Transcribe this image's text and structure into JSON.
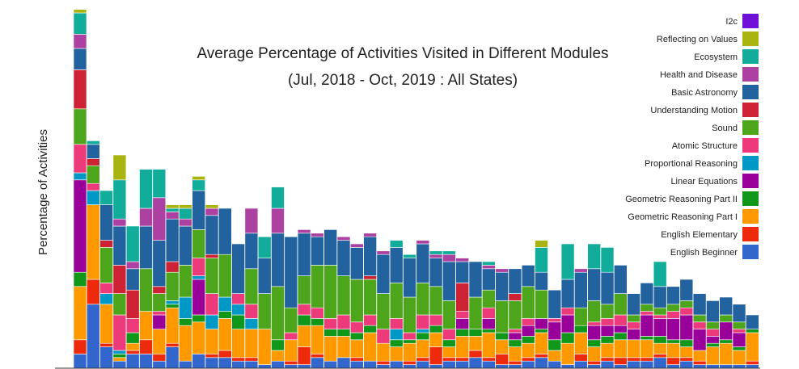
{
  "chart_data": {
    "type": "bar",
    "stacked": true,
    "title": "Average Percentage of Activities Visited in Different Modules",
    "subtitle": "(Jul, 2018 - Oct, 2019 : All States)",
    "xlabel": "",
    "ylabel": "Percentage of Activities",
    "ylim": [
      0,
      100
    ],
    "grid": false,
    "legend_position": "top-right",
    "series": [
      {
        "name": "English Beginner",
        "color": "#3366cc",
        "values": [
          4,
          18,
          6,
          2,
          4,
          4,
          2,
          6,
          2,
          4,
          3,
          3,
          2,
          2,
          1,
          2,
          1,
          1,
          3,
          2,
          3,
          2,
          2,
          1,
          2,
          1,
          2,
          1,
          2,
          2,
          3,
          2,
          1,
          1,
          2,
          3,
          2,
          1,
          2,
          1,
          2,
          1,
          2,
          2,
          3,
          1,
          2,
          1,
          1,
          1,
          1,
          1
        ]
      },
      {
        "name": "English Elementary",
        "color": "#ee2a0c",
        "values": [
          4,
          7,
          1,
          0,
          1,
          4,
          2,
          1,
          0,
          0,
          1,
          2,
          1,
          1,
          0,
          0,
          1,
          5,
          1,
          0,
          0,
          1,
          0,
          1,
          0,
          1,
          1,
          5,
          1,
          1,
          2,
          1,
          3,
          1,
          1,
          1,
          0,
          0,
          2,
          1,
          1,
          2,
          1,
          1,
          1,
          2,
          1,
          1,
          0,
          0,
          0,
          1
        ]
      },
      {
        "name": "Geometric Reasoning Part I",
        "color": "#ff9900",
        "values": [
          15,
          21,
          11,
          1,
          2,
          8,
          7,
          10,
          10,
          9,
          7,
          9,
          8,
          8,
          10,
          3,
          6,
          6,
          8,
          7,
          6,
          5,
          8,
          5,
          4,
          5,
          5,
          4,
          3,
          6,
          4,
          7,
          4,
          4,
          4,
          6,
          3,
          6,
          6,
          4,
          4,
          5,
          5,
          5,
          3,
          4,
          3,
          3,
          5,
          6,
          4,
          8
        ]
      },
      {
        "name": "Geometric Reasoning Part II",
        "color": "#109618",
        "values": [
          4,
          0,
          0,
          1,
          3,
          0,
          0,
          1,
          2,
          2,
          0,
          2,
          4,
          0,
          0,
          3,
          0,
          3,
          2,
          2,
          2,
          2,
          2,
          0,
          2,
          1,
          2,
          2,
          2,
          2,
          2,
          1,
          2,
          2,
          2,
          1,
          3,
          3,
          2,
          2,
          2,
          2,
          0,
          1,
          2,
          1,
          2,
          0,
          1,
          1,
          1,
          1
        ]
      },
      {
        "name": "Linear Equations",
        "color": "#990099",
        "values": [
          26,
          0,
          0,
          0,
          0,
          0,
          4,
          0,
          0,
          10,
          0,
          0,
          0,
          0,
          0,
          0,
          0,
          0,
          0,
          0,
          0,
          0,
          0,
          0,
          0,
          0,
          0,
          0,
          0,
          3,
          0,
          3,
          0,
          2,
          3,
          3,
          5,
          5,
          0,
          4,
          3,
          2,
          3,
          6,
          5,
          6,
          7,
          6,
          2,
          5,
          4,
          0
        ]
      },
      {
        "name": "Proportional Reasoning",
        "color": "#0099c6",
        "values": [
          2,
          4,
          3,
          1,
          0,
          0,
          0,
          1,
          6,
          1,
          4,
          4,
          3,
          3,
          0,
          0,
          0,
          0,
          0,
          0,
          0,
          0,
          0,
          0,
          3,
          0,
          1,
          0,
          0,
          0,
          0,
          0,
          0,
          0,
          0,
          0,
          0,
          0,
          0,
          0,
          0,
          0,
          0,
          0,
          0,
          0,
          0,
          0,
          0,
          0,
          0,
          0
        ]
      },
      {
        "name": "Atomic Structure",
        "color": "#ec3a7a",
        "values": [
          8,
          2,
          3,
          10,
          4,
          0,
          1,
          0,
          0,
          5,
          6,
          0,
          3,
          4,
          0,
          0,
          2,
          3,
          3,
          3,
          4,
          3,
          3,
          4,
          3,
          2,
          4,
          3,
          3,
          2,
          0,
          3,
          0,
          1,
          2,
          0,
          1,
          2,
          0,
          1,
          2,
          3,
          2,
          1,
          1,
          2,
          2,
          2,
          2,
          0,
          1,
          0
        ]
      },
      {
        "name": "Sound",
        "color": "#4ca51a",
        "values": [
          10,
          5,
          10,
          6,
          0,
          12,
          5,
          8,
          9,
          8,
          10,
          12,
          0,
          10,
          10,
          15,
          7,
          8,
          12,
          15,
          11,
          12,
          10,
          10,
          10,
          10,
          9,
          8,
          8,
          0,
          9,
          5,
          9,
          8,
          9,
          8,
          0,
          0,
          5,
          6,
          4,
          6,
          2,
          2,
          2,
          2,
          2,
          2,
          2,
          2,
          2,
          0
        ]
      },
      {
        "name": "Understanding Motion",
        "color": "#cc2233",
        "values": [
          11,
          2,
          2,
          8,
          8,
          0,
          2,
          3,
          0,
          0,
          1,
          0,
          0,
          0,
          0,
          0,
          0,
          0,
          0,
          0,
          0,
          0,
          1,
          0,
          0,
          0,
          0,
          0,
          0,
          8,
          0,
          0,
          0,
          2,
          0,
          0,
          0,
          0,
          0,
          0,
          0,
          0,
          0,
          0,
          0,
          0,
          0,
          0,
          0,
          0,
          0,
          0
        ]
      },
      {
        "name": "Basic Astronomy",
        "color": "#22629e",
        "values": [
          6,
          4,
          10,
          11,
          6,
          12,
          13,
          12,
          11,
          11,
          11,
          13,
          14,
          10,
          10,
          15,
          20,
          12,
          8,
          10,
          10,
          9,
          11,
          11,
          10,
          11,
          11,
          8,
          11,
          6,
          10,
          6,
          8,
          7,
          6,
          5,
          8,
          8,
          10,
          9,
          9,
          8,
          6,
          6,
          6,
          5,
          6,
          6,
          6,
          5,
          5,
          4
        ]
      },
      {
        "name": "Health and Disease",
        "color": "#ad41a1",
        "values": [
          4,
          0,
          0,
          2,
          2,
          5,
          12,
          2,
          2,
          0,
          2,
          0,
          0,
          7,
          0,
          7,
          0,
          1,
          1,
          0,
          1,
          1,
          1,
          1,
          0,
          0,
          1,
          1,
          2,
          1,
          0,
          1,
          1,
          0,
          0,
          0,
          0,
          0,
          1,
          0,
          0,
          0,
          0,
          0,
          0,
          0,
          0,
          0,
          0,
          0,
          0,
          0
        ]
      },
      {
        "name": "Ecosystem",
        "color": "#12ad9a",
        "values": [
          6,
          1,
          4,
          11,
          10,
          11,
          8,
          1,
          3,
          3,
          0,
          0,
          0,
          0,
          6,
          6,
          0,
          0,
          0,
          0,
          0,
          0,
          0,
          0,
          2,
          1,
          0,
          1,
          1,
          0,
          0,
          1,
          0,
          0,
          0,
          7,
          0,
          10,
          0,
          7,
          7,
          0,
          0,
          0,
          7,
          0,
          0,
          0,
          0,
          0,
          0,
          0
        ]
      },
      {
        "name": "Reflecting on Values",
        "color": "#aab411",
        "values": [
          1,
          0,
          0,
          7,
          0,
          0,
          0,
          1,
          1,
          1,
          1,
          0,
          0,
          0,
          0,
          0,
          0,
          0,
          0,
          0,
          0,
          0,
          0,
          0,
          0,
          0,
          0,
          0,
          0,
          0,
          0,
          0,
          0,
          0,
          0,
          2,
          0,
          0,
          0,
          0,
          0,
          0,
          0,
          0,
          0,
          0,
          0,
          0,
          0,
          0,
          0,
          0
        ]
      },
      {
        "name": "I2c",
        "color": "#7011d6",
        "values": [
          0,
          0,
          0,
          0,
          0,
          0,
          0,
          0,
          0,
          0,
          0,
          0,
          0,
          0,
          0,
          0,
          0,
          0,
          0,
          0,
          0,
          0,
          0,
          0,
          0,
          0,
          0,
          0,
          0,
          0,
          0,
          0,
          0,
          0,
          0,
          0,
          0,
          0,
          0,
          0,
          0,
          0,
          0,
          0,
          0,
          0,
          0,
          0,
          0,
          0,
          0,
          0
        ]
      }
    ],
    "legend_order": [
      "I2c",
      "Reflecting on Values",
      "Ecosystem",
      "Health and Disease",
      "Basic Astronomy",
      "Understanding Motion",
      "Sound",
      "Atomic Structure",
      "Proportional Reasoning",
      "Linear Equations",
      "Geometric Reasoning Part II",
      "Geometric Reasoning Part I",
      "English Elementary",
      "English Beginner"
    ]
  }
}
